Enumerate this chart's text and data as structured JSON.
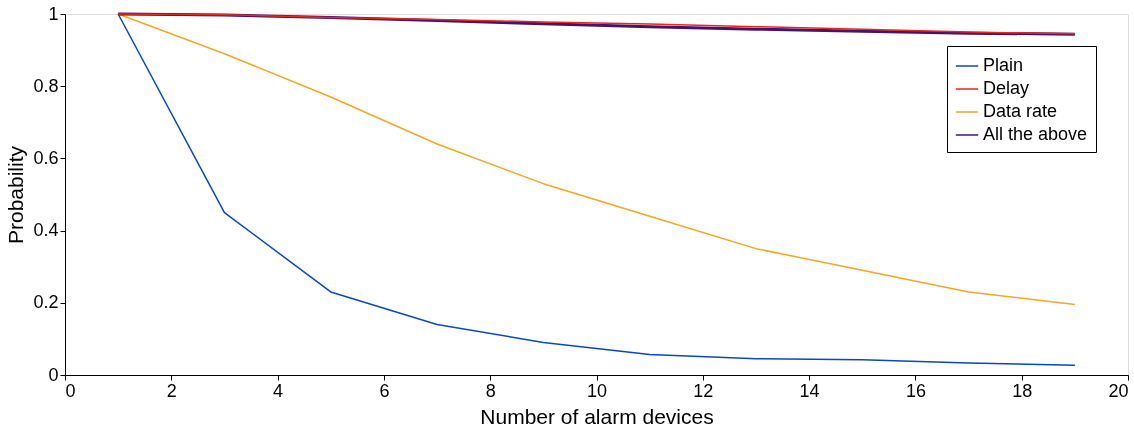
{
  "chart_data": {
    "type": "line",
    "xlabel": "Number of alarm devices",
    "ylabel": "Probability",
    "x": [
      1,
      3,
      5,
      7,
      9,
      11,
      13,
      15,
      17,
      19
    ],
    "series": [
      {
        "name": "Plain",
        "color": "#0a47c2",
        "values": [
          1,
          0.45,
          0.23,
          0.14,
          0.09,
          0.057,
          0.045,
          0.042,
          0.033,
          0.027
        ]
      },
      {
        "name": "Delay",
        "color": "#e8281c",
        "values": [
          1,
          0.998,
          0.99,
          0.985,
          0.978,
          0.972,
          0.965,
          0.958,
          0.95,
          0.945
        ]
      },
      {
        "name": "Data rate",
        "color": "#f5a623",
        "values": [
          1,
          0.89,
          0.77,
          0.64,
          0.53,
          0.44,
          0.35,
          0.29,
          0.23,
          0.195
        ]
      },
      {
        "name": "All the above",
        "color": "#4b0f6e",
        "values": [
          1,
          0.997,
          0.99,
          0.982,
          0.973,
          0.965,
          0.958,
          0.952,
          0.947,
          0.944
        ]
      }
    ],
    "xlim": [
      0,
      20
    ],
    "xticks": [
      0,
      2,
      4,
      6,
      8,
      10,
      12,
      14,
      16,
      18,
      20
    ],
    "ylim": [
      0,
      1
    ],
    "yticks": [
      0,
      0.2,
      0.4,
      0.6,
      0.8,
      1
    ],
    "grid": false,
    "legend": "top right",
    "marker": "none",
    "line_style": "solid"
  }
}
